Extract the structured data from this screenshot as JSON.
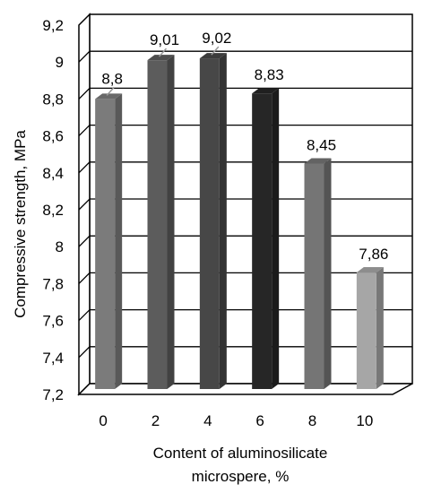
{
  "chart_data": {
    "type": "bar",
    "categories": [
      "0",
      "2",
      "4",
      "6",
      "8",
      "10"
    ],
    "values": [
      8.8,
      9.01,
      9.02,
      8.83,
      8.45,
      7.86
    ],
    "value_labels": [
      "8,8",
      "9,01",
      "9,02",
      "8,83",
      "8,45",
      "7,86"
    ],
    "bar_colors": [
      "#7b7b7b",
      "#5c5c5c",
      "#474747",
      "#262626",
      "#757575",
      "#a6a6a6"
    ],
    "yticks": [
      7.2,
      7.4,
      7.6,
      7.8,
      8,
      8.2,
      8.4,
      8.6,
      8.8,
      9,
      9.2
    ],
    "ytick_labels": [
      "7,2",
      "7,4",
      "7,6",
      "7,8",
      "8",
      "8,2",
      "8,4",
      "8,6",
      "8,8",
      "9",
      "9,2"
    ],
    "ylim": [
      7.2,
      9.2
    ],
    "ylabel": "Compressive strength, MPa",
    "xlabel_lines": [
      "Content of aluminosilicate",
      "microspere, %"
    ],
    "title": "",
    "grid": true,
    "legend": "none",
    "style": "3d-columns"
  }
}
